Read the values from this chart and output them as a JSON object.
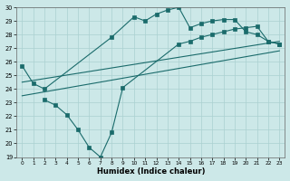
{
  "xlabel": "Humidex (Indice chaleur)",
  "bg_color": "#cce8e8",
  "line_color": "#1a6b6b",
  "grid_color": "#aad0d0",
  "xlim": [
    -0.5,
    23.5
  ],
  "ylim": [
    19,
    30
  ],
  "xticks": [
    0,
    1,
    2,
    3,
    4,
    5,
    6,
    7,
    8,
    9,
    10,
    11,
    12,
    13,
    14,
    15,
    16,
    17,
    18,
    19,
    20,
    21,
    22,
    23
  ],
  "yticks": [
    19,
    20,
    21,
    22,
    23,
    24,
    25,
    26,
    27,
    28,
    29,
    30
  ],
  "line1_x": [
    0,
    1,
    2,
    8,
    10,
    11,
    12,
    13,
    14,
    15,
    16,
    17,
    18,
    19,
    20,
    21,
    22,
    23
  ],
  "line1_y": [
    25.7,
    24.4,
    24.0,
    27.8,
    29.3,
    29.0,
    29.5,
    29.8,
    30.0,
    28.5,
    28.8,
    29.0,
    29.1,
    29.1,
    28.2,
    28.0,
    27.5,
    27.3
  ],
  "line2_x": [
    0,
    23
  ],
  "line2_y": [
    24.5,
    27.5
  ],
  "line3_x": [
    0,
    23
  ],
  "line3_y": [
    23.5,
    26.8
  ],
  "line4_x": [
    2,
    3,
    4,
    5,
    6,
    7,
    8,
    9,
    14,
    15,
    16,
    17,
    18,
    19,
    20,
    21,
    22,
    23
  ],
  "line4_y": [
    23.2,
    22.8,
    22.1,
    21.0,
    19.7,
    19.0,
    20.8,
    24.1,
    27.3,
    27.5,
    27.8,
    28.0,
    28.2,
    28.4,
    28.5,
    28.6,
    27.5,
    27.3
  ]
}
